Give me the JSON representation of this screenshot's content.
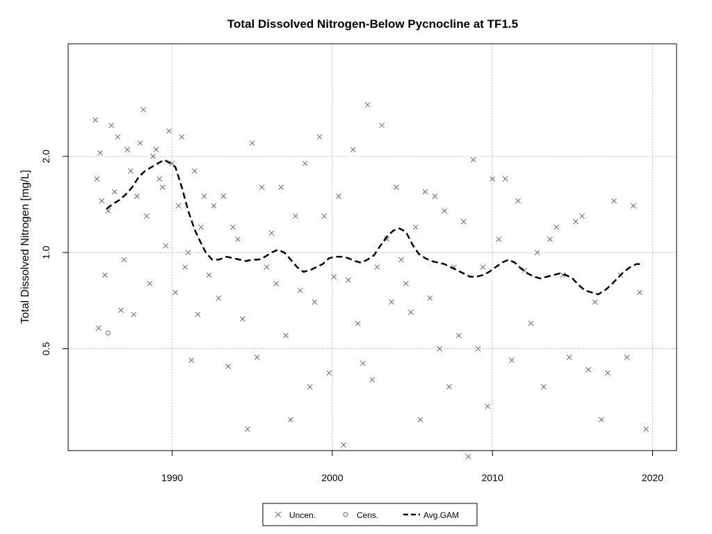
{
  "chart_data": {
    "type": "scatter",
    "title": "Total Dissolved Nitrogen-Below Pycnocline at TF1.5",
    "xlabel": "",
    "ylabel": "Total Dissolved Nitrogen [mg/L]",
    "y_scale": "log",
    "xlim": [
      1983.5,
      2021.5
    ],
    "ylim": [
      0.24,
      4.5
    ],
    "x_ticks": [
      1990,
      2000,
      2010,
      2020
    ],
    "y_ticks": [
      0.5,
      1.0,
      2.0
    ],
    "y_tick_labels": [
      "0.5",
      "1.0",
      "2.0"
    ],
    "grid": "major ticks (dotted)",
    "legend_position": "bottom-center",
    "legend": [
      {
        "label": "Uncen.",
        "symbol": "cross"
      },
      {
        "label": "Cens.",
        "symbol": "circle"
      },
      {
        "label": "Avg.GAM",
        "symbol": "dashed-line"
      }
    ],
    "colors": {
      "points": "#5a6a8a",
      "gam": "#000000",
      "grid": "#bbbbbb"
    },
    "series": [
      {
        "name": "Uncen.",
        "x": [
          1985.2,
          1985.3,
          1985.4,
          1985.5,
          1985.6,
          1985.8,
          1986.0,
          1986.2,
          1986.4,
          1986.6,
          1986.8,
          1987.0,
          1987.2,
          1987.4,
          1987.6,
          1987.8,
          1988.0,
          1988.2,
          1988.4,
          1988.6,
          1988.8,
          1989.0,
          1989.2,
          1989.4,
          1989.6,
          1989.8,
          1990.0,
          1990.2,
          1990.4,
          1990.6,
          1990.8,
          1991.0,
          1991.2,
          1991.4,
          1991.6,
          1991.8,
          1992.0,
          1992.3,
          1992.6,
          1992.9,
          1993.2,
          1993.5,
          1993.8,
          1994.1,
          1994.4,
          1994.7,
          1995.0,
          1995.3,
          1995.6,
          1995.9,
          1996.2,
          1996.5,
          1996.8,
          1997.1,
          1997.4,
          1997.7,
          1998.0,
          1998.3,
          1998.6,
          1998.9,
          1999.2,
          1999.5,
          1999.8,
          2000.1,
          2000.4,
          2000.7,
          2001.0,
          2001.3,
          2001.6,
          2001.9,
          2002.2,
          2002.5,
          2002.8,
          2003.1,
          2003.4,
          2003.7,
          2004.0,
          2004.3,
          2004.6,
          2004.9,
          2005.2,
          2005.5,
          2005.8,
          2006.1,
          2006.4,
          2006.7,
          2007.0,
          2007.3,
          2007.6,
          2007.9,
          2008.2,
          2008.5,
          2008.8,
          2009.1,
          2009.4,
          2009.7,
          2010.0,
          2010.4,
          2010.8,
          2011.2,
          2011.6,
          2012.0,
          2012.4,
          2012.8,
          2013.2,
          2013.6,
          2014.0,
          2014.4,
          2014.8,
          2015.2,
          2015.6,
          2016.0,
          2016.4,
          2016.8,
          2017.2,
          2017.6,
          2018.0,
          2018.4,
          2018.8,
          2019.2,
          2019.6
        ],
        "y": [
          2.6,
          1.7,
          0.58,
          2.05,
          1.45,
          0.85,
          1.35,
          2.5,
          1.55,
          2.3,
          0.66,
          0.95,
          2.1,
          1.8,
          0.64,
          1.5,
          2.2,
          2.8,
          1.3,
          0.8,
          2.0,
          2.1,
          1.7,
          1.6,
          1.05,
          2.4,
          1.9,
          0.75,
          1.4,
          2.3,
          0.9,
          1.0,
          0.46,
          1.8,
          0.64,
          1.2,
          1.5,
          0.85,
          1.4,
          0.72,
          1.5,
          0.44,
          1.2,
          1.1,
          0.62,
          0.28,
          2.2,
          0.47,
          1.6,
          0.9,
          1.15,
          0.8,
          1.6,
          0.55,
          0.3,
          1.3,
          0.76,
          1.9,
          0.38,
          0.7,
          2.3,
          1.3,
          0.42,
          0.84,
          1.5,
          0.25,
          0.82,
          2.1,
          0.6,
          0.45,
          2.9,
          0.4,
          0.9,
          2.5,
          1.1,
          0.7,
          1.6,
          0.95,
          0.8,
          0.65,
          1.2,
          0.3,
          1.55,
          0.72,
          1.5,
          0.5,
          1.35,
          0.38,
          0.9,
          0.55,
          1.25,
          0.23,
          1.95,
          0.5,
          0.9,
          0.33,
          1.7,
          1.1,
          1.7,
          0.46,
          1.45,
          0.88,
          0.6,
          1.0,
          0.38,
          1.1,
          1.2,
          0.85,
          0.47,
          1.25,
          1.3,
          0.43,
          0.7,
          0.3,
          0.42,
          1.45,
          0.85,
          0.47,
          1.4,
          0.75,
          0.28
        ]
      },
      {
        "name": "Cens.",
        "x": [
          1986.0
        ],
        "y": [
          0.56
        ]
      },
      {
        "name": "Avg.GAM",
        "x": [
          1985.9,
          1986.3,
          1986.7,
          1987.1,
          1987.5,
          1987.9,
          1988.3,
          1988.7,
          1989.1,
          1989.5,
          1989.9,
          1990.2,
          1990.6,
          1991.0,
          1991.4,
          1991.8,
          1992.1,
          1992.5,
          1992.9,
          1993.4,
          1993.8,
          1994.2,
          1994.6,
          1995.0,
          1995.4,
          1995.8,
          1996.2,
          1996.6,
          1997.0,
          1997.4,
          1997.8,
          1998.2,
          1998.6,
          1999.0,
          1999.4,
          1999.8,
          2000.2,
          2000.6,
          2001.0,
          2001.4,
          2001.8,
          2002.2,
          2002.6,
          2003.0,
          2003.4,
          2003.8,
          2004.2,
          2004.6,
          2005.0,
          2005.4,
          2005.8,
          2006.2,
          2006.6,
          2007.0,
          2007.4,
          2007.8,
          2008.2,
          2008.6,
          2009.0,
          2009.4,
          2009.8,
          2010.2,
          2010.6,
          2011.0,
          2011.4,
          2011.8,
          2012.2,
          2012.6,
          2013.0,
          2013.4,
          2013.8,
          2014.2,
          2014.6,
          2015.0,
          2015.4,
          2015.8,
          2016.2,
          2016.6,
          2017.0,
          2017.4,
          2017.8,
          2018.2,
          2018.6,
          2019.0,
          2019.4
        ],
        "y": [
          1.37,
          1.42,
          1.46,
          1.52,
          1.6,
          1.72,
          1.8,
          1.85,
          1.9,
          1.95,
          1.9,
          1.85,
          1.6,
          1.35,
          1.18,
          1.07,
          1.0,
          0.95,
          0.95,
          0.97,
          0.96,
          0.95,
          0.94,
          0.95,
          0.95,
          0.97,
          1.0,
          1.02,
          1.0,
          0.95,
          0.9,
          0.87,
          0.88,
          0.9,
          0.92,
          0.96,
          0.97,
          0.97,
          0.96,
          0.94,
          0.93,
          0.95,
          0.98,
          1.05,
          1.12,
          1.17,
          1.19,
          1.16,
          1.06,
          0.99,
          0.96,
          0.94,
          0.93,
          0.92,
          0.9,
          0.88,
          0.86,
          0.84,
          0.84,
          0.85,
          0.87,
          0.9,
          0.93,
          0.95,
          0.93,
          0.89,
          0.86,
          0.84,
          0.83,
          0.84,
          0.85,
          0.86,
          0.85,
          0.83,
          0.79,
          0.76,
          0.75,
          0.74,
          0.76,
          0.79,
          0.83,
          0.87,
          0.9,
          0.92,
          0.92
        ]
      }
    ]
  }
}
